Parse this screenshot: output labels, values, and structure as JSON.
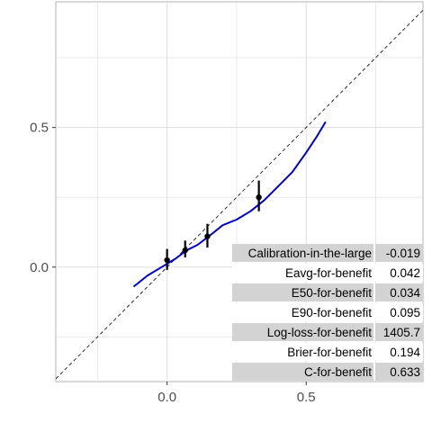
{
  "chart_data": {
    "type": "line",
    "title": "",
    "xlabel": "",
    "ylabel": "",
    "xlim": [
      -0.4,
      0.92
    ],
    "ylim": [
      -0.41,
      0.95
    ],
    "x_ticks": [
      0.0,
      0.5
    ],
    "y_ticks": [
      0.0,
      0.5
    ],
    "x_tick_labels": [
      "0.0",
      "0.5"
    ],
    "y_tick_labels": [
      "0.0",
      "0.5"
    ],
    "grid": true,
    "reference_line": "identity",
    "series": [
      {
        "type": "line",
        "color": "#0000cc",
        "x": [
          -0.12,
          -0.07,
          -0.02,
          0.03,
          0.07,
          0.11,
          0.15,
          0.2,
          0.25,
          0.3,
          0.35,
          0.4,
          0.45,
          0.5,
          0.54,
          0.57
        ],
        "y": [
          -0.07,
          -0.03,
          0.0,
          0.03,
          0.06,
          0.08,
          0.11,
          0.15,
          0.17,
          0.2,
          0.24,
          0.29,
          0.34,
          0.41,
          0.47,
          0.52
        ]
      },
      {
        "type": "points_with_error_bars",
        "color": "#000000",
        "x": [
          0.0,
          0.065,
          0.145,
          0.33
        ],
        "y": [
          0.025,
          0.06,
          0.11,
          0.25
        ],
        "y_low": [
          -0.01,
          0.035,
          0.07,
          0.2
        ],
        "y_high": [
          0.065,
          0.095,
          0.155,
          0.31
        ]
      }
    ],
    "metrics": [
      {
        "label": "Calibration-in-the-large",
        "value": "-0.019",
        "shaded": true
      },
      {
        "label": "Eavg-for-benefit",
        "value": "0.042",
        "shaded": false
      },
      {
        "label": "E50-for-benefit",
        "value": "0.034",
        "shaded": true
      },
      {
        "label": "E90-for-benefit",
        "value": "0.095",
        "shaded": false
      },
      {
        "label": "Log-loss-for-benefit",
        "value": "1405.7",
        "shaded": true
      },
      {
        "label": "Brier-for-benefit",
        "value": "0.194",
        "shaded": false
      },
      {
        "label": "C-for-benefit",
        "value": "0.633",
        "shaded": true
      }
    ]
  }
}
